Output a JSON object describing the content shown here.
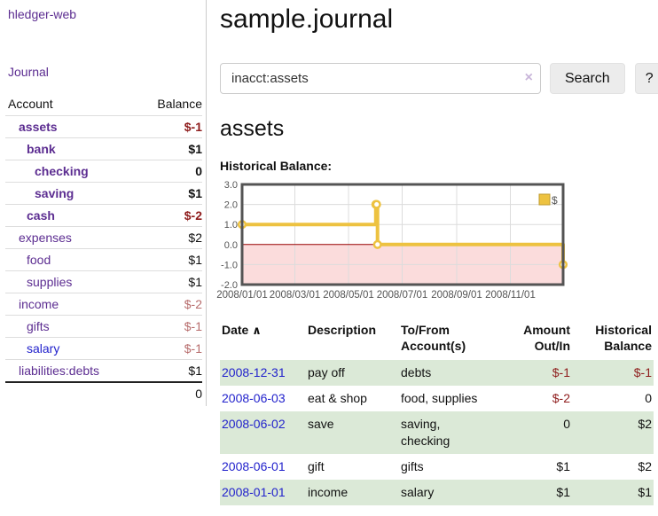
{
  "sidebar": {
    "brand": "hledger-web",
    "journal_link": "Journal",
    "accounts_table": {
      "headers": {
        "account": "Account",
        "balance": "Balance"
      },
      "rows": [
        {
          "name": "assets",
          "balance": "$-1",
          "depth": 1,
          "bold": true,
          "name_style": "purple",
          "balance_style": "negative"
        },
        {
          "name": "bank",
          "balance": "$1",
          "depth": 2,
          "bold": true,
          "name_style": "purple",
          "balance_style": "normal"
        },
        {
          "name": "checking",
          "balance": "0",
          "depth": 3,
          "bold": true,
          "name_style": "purple",
          "balance_style": "normal"
        },
        {
          "name": "saving",
          "balance": "$1",
          "depth": 3,
          "bold": true,
          "name_style": "purple",
          "balance_style": "normal"
        },
        {
          "name": "cash",
          "balance": "$-2",
          "depth": 2,
          "bold": true,
          "name_style": "purple",
          "balance_style": "negative"
        },
        {
          "name": "expenses",
          "balance": "$2",
          "depth": 1,
          "bold": false,
          "name_style": "purple",
          "balance_style": "normal"
        },
        {
          "name": "food",
          "balance": "$1",
          "depth": 2,
          "bold": false,
          "name_style": "purple",
          "balance_style": "normal"
        },
        {
          "name": "supplies",
          "balance": "$1",
          "depth": 2,
          "bold": false,
          "name_style": "purple",
          "balance_style": "normal"
        },
        {
          "name": "income",
          "balance": "$-2",
          "depth": 1,
          "bold": false,
          "name_style": "purple",
          "balance_style": "dimmed"
        },
        {
          "name": "gifts",
          "balance": "$-1",
          "depth": 2,
          "bold": false,
          "name_style": "purple",
          "balance_style": "dimmed"
        },
        {
          "name": "salary",
          "balance": "$-1",
          "depth": 2,
          "bold": false,
          "name_style": "blue",
          "balance_style": "dimmed"
        },
        {
          "name": "liabilities:debts",
          "balance": "$1",
          "depth": 1,
          "bold": false,
          "name_style": "purple",
          "balance_style": "normal"
        }
      ],
      "total": "0"
    }
  },
  "main": {
    "title": "sample.journal",
    "search": {
      "value": "inacct:assets",
      "clear_icon": "×",
      "button": "Search",
      "help_button": "?"
    },
    "account_heading": "assets",
    "chart_label": "Historical Balance:",
    "register": {
      "sort_icon": "∧",
      "headers": {
        "date": "Date",
        "description": "Description",
        "accounts": "To/From Account(s)",
        "amount": "Amount Out/In",
        "balance": "Historical Balance"
      },
      "rows": [
        {
          "date": "2008-12-31",
          "description": "pay off",
          "accounts": "debts",
          "amount": "$-1",
          "balance": "$-1",
          "amount_style": "negative",
          "balance_style": "negative",
          "striped": true
        },
        {
          "date": "2008-06-03",
          "description": "eat & shop",
          "accounts": "food, supplies",
          "amount": "$-2",
          "balance": "0",
          "amount_style": "negative",
          "balance_style": "normal",
          "striped": false
        },
        {
          "date": "2008-06-02",
          "description": "save",
          "accounts": "saving, checking",
          "amount": "0",
          "balance": "$2",
          "amount_style": "normal",
          "balance_style": "normal",
          "striped": true
        },
        {
          "date": "2008-06-01",
          "description": "gift",
          "accounts": "gifts",
          "amount": "$1",
          "balance": "$2",
          "amount_style": "normal",
          "balance_style": "normal",
          "striped": false
        },
        {
          "date": "2008-01-01",
          "description": "income",
          "accounts": "salary",
          "amount": "$1",
          "balance": "$1",
          "amount_style": "normal",
          "balance_style": "normal",
          "striped": true
        }
      ]
    }
  },
  "chart_data": {
    "type": "line",
    "title": "Historical Balance",
    "steps": true,
    "series": [
      {
        "name": "$",
        "color": "#edc240",
        "points": [
          [
            "2008-01-01",
            1
          ],
          [
            "2008-06-01",
            2
          ],
          [
            "2008-06-02",
            2
          ],
          [
            "2008-06-03",
            0
          ],
          [
            "2008-12-31",
            -1
          ]
        ]
      }
    ],
    "xrange": [
      "2008-01-01",
      "2008-12-31"
    ],
    "ylim": [
      -2,
      3
    ],
    "yticks": [
      3,
      2,
      1,
      0,
      -1,
      -2
    ],
    "xticks": [
      "2008/01/01",
      "2008/03/01",
      "2008/05/01",
      "2008/07/01",
      "2008/09/01",
      "2008/11/01"
    ],
    "legend": {
      "position": "top-right",
      "label": "$"
    },
    "grid": true,
    "negative_region_color": "#fbdcdc",
    "zero_line_color": "#990000",
    "grid_color": "#dcdcdc",
    "border_color": "#545454"
  },
  "colors": {
    "link_purple": "#5c2d91",
    "link_blue": "#2222cc",
    "negative_red": "#8e1c1c",
    "dimmed_negative": "#b76c6c",
    "stripe_green": "#dbe9d7",
    "series_yellow": "#edc240"
  }
}
